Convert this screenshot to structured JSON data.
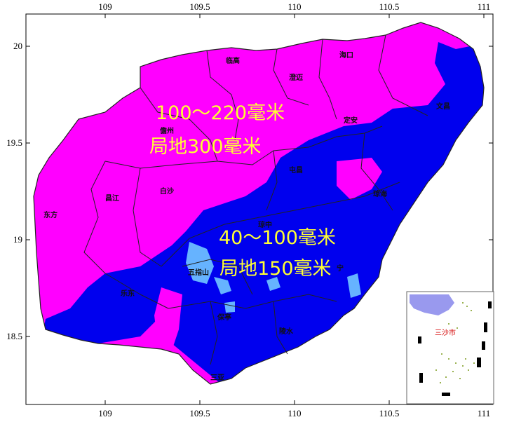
{
  "map": {
    "x_ticks": [
      "109",
      "109.5",
      "110",
      "110.5",
      "111"
    ],
    "y_ticks": [
      "20",
      "19.5",
      "19",
      "18.5"
    ],
    "colors": {
      "high_band": "#ff00ff",
      "mid_band": "#0000ee",
      "low_band": "#66b3ff",
      "boundary": "#222222",
      "label_text": "#ffff33"
    },
    "annotations": {
      "high": {
        "line1": "100～220毫米",
        "line2": "局地300毫米"
      },
      "mid": {
        "line1": "40～100毫米",
        "line2": "局地150毫米"
      }
    },
    "cities": {
      "haikou": "海口",
      "lingao": "临高",
      "chengmai": "澄迈",
      "dingan": "定安",
      "wenchang": "文昌",
      "danzhou": "儋州",
      "tunchang": "屯昌",
      "qionghai": "琼海",
      "baisha": "白沙",
      "changjiang": "昌江",
      "dongfang": "东方",
      "qiongzhong": "琼中",
      "wuzhishan": "五指山",
      "ledong": "乐东",
      "baoting": "保亭",
      "lingshui": "陵水",
      "sanya": "三亚",
      "wanning": "宁"
    },
    "inset": {
      "label": "三沙市"
    }
  }
}
